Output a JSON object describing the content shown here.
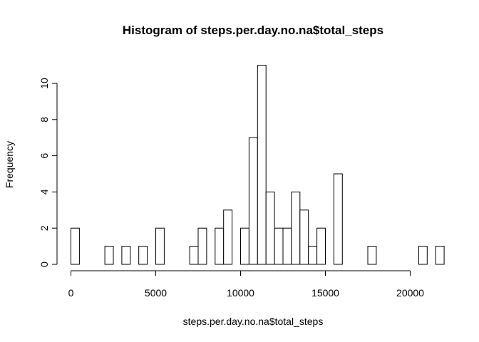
{
  "chart_data": {
    "type": "bar",
    "subtype": "histogram",
    "title": "Histogram of steps.per.day.no.na$total_steps",
    "xlabel": "steps.per.day.no.na$total_steps",
    "ylabel": "Frequency",
    "bin_width": 500,
    "bin_start": 0,
    "values": [
      2,
      0,
      0,
      0,
      1,
      0,
      1,
      0,
      1,
      0,
      2,
      0,
      0,
      0,
      1,
      2,
      0,
      2,
      3,
      0,
      2,
      7,
      11,
      4,
      2,
      2,
      4,
      3,
      1,
      2,
      0,
      5,
      0,
      0,
      0,
      1,
      0,
      0,
      0,
      0,
      0,
      1,
      0,
      1
    ],
    "xlim": [
      0,
      22000
    ],
    "ylim": [
      0,
      11
    ],
    "x_ticks": [
      0,
      5000,
      10000,
      15000,
      20000
    ],
    "y_ticks": [
      0,
      2,
      4,
      6,
      8,
      10
    ],
    "grid": false,
    "bar_fill": "#ffffff",
    "bar_stroke": "#000000"
  }
}
